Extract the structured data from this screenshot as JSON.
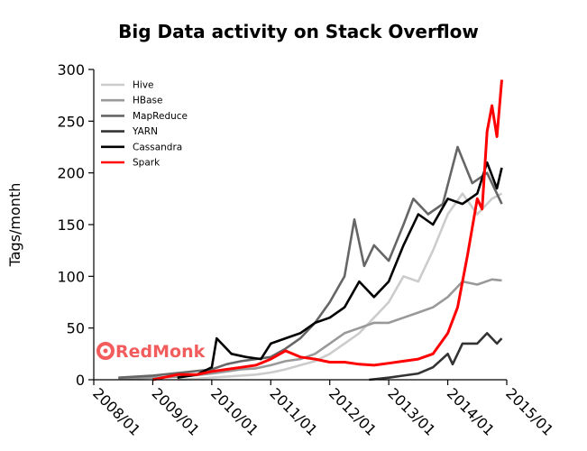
{
  "brand": {
    "name": "RedMonk",
    "color": "#f25c5c"
  },
  "chart_data": {
    "type": "line",
    "title": "Big Data activity on Stack Overflow",
    "xlabel": "",
    "ylabel": "Tags/month",
    "x_ticks": [
      "2008/01",
      "2009/01",
      "2010/01",
      "2011/01",
      "2012/01",
      "2013/01",
      "2014/01",
      "2015/01"
    ],
    "y_ticks": [
      0,
      50,
      100,
      150,
      200,
      250,
      300
    ],
    "xlim": [
      "2008/01",
      "2015/01"
    ],
    "ylim": [
      0,
      300
    ],
    "grid": false,
    "legend_position": "top-left",
    "series": [
      {
        "name": "Hive",
        "color": "#cccccc",
        "points": [
          [
            "2009/06",
            0
          ],
          [
            "2009/10",
            1
          ],
          [
            "2010/01",
            2
          ],
          [
            "2010/04",
            3
          ],
          [
            "2010/07",
            4
          ],
          [
            "2010/10",
            5
          ],
          [
            "2011/01",
            7
          ],
          [
            "2011/04",
            10
          ],
          [
            "2011/07",
            14
          ],
          [
            "2011/10",
            18
          ],
          [
            "2012/01",
            25
          ],
          [
            "2012/04",
            35
          ],
          [
            "2012/07",
            45
          ],
          [
            "2012/10",
            60
          ],
          [
            "2013/01",
            75
          ],
          [
            "2013/04",
            100
          ],
          [
            "2013/07",
            95
          ],
          [
            "2013/10",
            125
          ],
          [
            "2014/01",
            160
          ],
          [
            "2014/04",
            180
          ],
          [
            "2014/07",
            160
          ],
          [
            "2014/10",
            175
          ],
          [
            "2014/12",
            180
          ]
        ]
      },
      {
        "name": "HBase",
        "color": "#999999",
        "points": [
          [
            "2008/06",
            1
          ],
          [
            "2009/01",
            2
          ],
          [
            "2009/07",
            3
          ],
          [
            "2010/01",
            6
          ],
          [
            "2010/04",
            8
          ],
          [
            "2010/07",
            10
          ],
          [
            "2010/10",
            11
          ],
          [
            "2011/01",
            14
          ],
          [
            "2011/04",
            18
          ],
          [
            "2011/07",
            20
          ],
          [
            "2011/10",
            25
          ],
          [
            "2012/01",
            35
          ],
          [
            "2012/04",
            45
          ],
          [
            "2012/07",
            50
          ],
          [
            "2012/10",
            55
          ],
          [
            "2013/01",
            55
          ],
          [
            "2013/04",
            60
          ],
          [
            "2013/07",
            65
          ],
          [
            "2013/10",
            70
          ],
          [
            "2014/01",
            80
          ],
          [
            "2014/04",
            95
          ],
          [
            "2014/07",
            92
          ],
          [
            "2014/10",
            97
          ],
          [
            "2014/12",
            96
          ]
        ]
      },
      {
        "name": "MapReduce",
        "color": "#666666",
        "points": [
          [
            "2008/06",
            2
          ],
          [
            "2009/01",
            4
          ],
          [
            "2009/07",
            7
          ],
          [
            "2010/01",
            10
          ],
          [
            "2010/04",
            15
          ],
          [
            "2010/07",
            18
          ],
          [
            "2010/10",
            20
          ],
          [
            "2011/01",
            22
          ],
          [
            "2011/04",
            30
          ],
          [
            "2011/07",
            40
          ],
          [
            "2011/10",
            55
          ],
          [
            "2012/01",
            75
          ],
          [
            "2012/04",
            100
          ],
          [
            "2012/06",
            155
          ],
          [
            "2012/08",
            110
          ],
          [
            "2012/10",
            130
          ],
          [
            "2013/01",
            115
          ],
          [
            "2013/04",
            150
          ],
          [
            "2013/06",
            175
          ],
          [
            "2013/09",
            160
          ],
          [
            "2013/12",
            170
          ],
          [
            "2014/03",
            225
          ],
          [
            "2014/06",
            190
          ],
          [
            "2014/09",
            200
          ],
          [
            "2014/12",
            170
          ]
        ]
      },
      {
        "name": "YARN",
        "color": "#333333",
        "points": [
          [
            "2012/09",
            0
          ],
          [
            "2013/01",
            2
          ],
          [
            "2013/04",
            4
          ],
          [
            "2013/07",
            6
          ],
          [
            "2013/10",
            12
          ],
          [
            "2014/01",
            25
          ],
          [
            "2014/02",
            15
          ],
          [
            "2014/04",
            35
          ],
          [
            "2014/07",
            35
          ],
          [
            "2014/09",
            45
          ],
          [
            "2014/11",
            35
          ],
          [
            "2014/12",
            40
          ]
        ]
      },
      {
        "name": "Cassandra",
        "color": "#000000",
        "points": [
          [
            "2009/06",
            2
          ],
          [
            "2009/10",
            5
          ],
          [
            "2010/01",
            12
          ],
          [
            "2010/02",
            40
          ],
          [
            "2010/05",
            25
          ],
          [
            "2010/08",
            22
          ],
          [
            "2010/11",
            20
          ],
          [
            "2011/01",
            35
          ],
          [
            "2011/04",
            40
          ],
          [
            "2011/07",
            45
          ],
          [
            "2011/10",
            55
          ],
          [
            "2012/01",
            60
          ],
          [
            "2012/04",
            70
          ],
          [
            "2012/07",
            95
          ],
          [
            "2012/10",
            80
          ],
          [
            "2013/01",
            95
          ],
          [
            "2013/04",
            130
          ],
          [
            "2013/07",
            160
          ],
          [
            "2013/10",
            150
          ],
          [
            "2014/01",
            175
          ],
          [
            "2014/04",
            170
          ],
          [
            "2014/07",
            180
          ],
          [
            "2014/09",
            210
          ],
          [
            "2014/11",
            185
          ],
          [
            "2014/12",
            205
          ]
        ]
      },
      {
        "name": "Spark",
        "color": "#ff0000",
        "points": [
          [
            "2009/01",
            0
          ],
          [
            "2009/06",
            5
          ],
          [
            "2009/10",
            5
          ],
          [
            "2010/01",
            8
          ],
          [
            "2010/04",
            10
          ],
          [
            "2010/07",
            12
          ],
          [
            "2010/10",
            14
          ],
          [
            "2011/01",
            20
          ],
          [
            "2011/04",
            28
          ],
          [
            "2011/07",
            22
          ],
          [
            "2011/10",
            20
          ],
          [
            "2012/01",
            17
          ],
          [
            "2012/04",
            17
          ],
          [
            "2012/07",
            15
          ],
          [
            "2012/10",
            14
          ],
          [
            "2013/01",
            16
          ],
          [
            "2013/04",
            18
          ],
          [
            "2013/07",
            20
          ],
          [
            "2013/10",
            25
          ],
          [
            "2014/01",
            45
          ],
          [
            "2014/03",
            70
          ],
          [
            "2014/05",
            120
          ],
          [
            "2014/07",
            175
          ],
          [
            "2014/08",
            165
          ],
          [
            "2014/09",
            240
          ],
          [
            "2014/10",
            265
          ],
          [
            "2014/11",
            235
          ],
          [
            "2014/12",
            290
          ]
        ]
      }
    ]
  }
}
